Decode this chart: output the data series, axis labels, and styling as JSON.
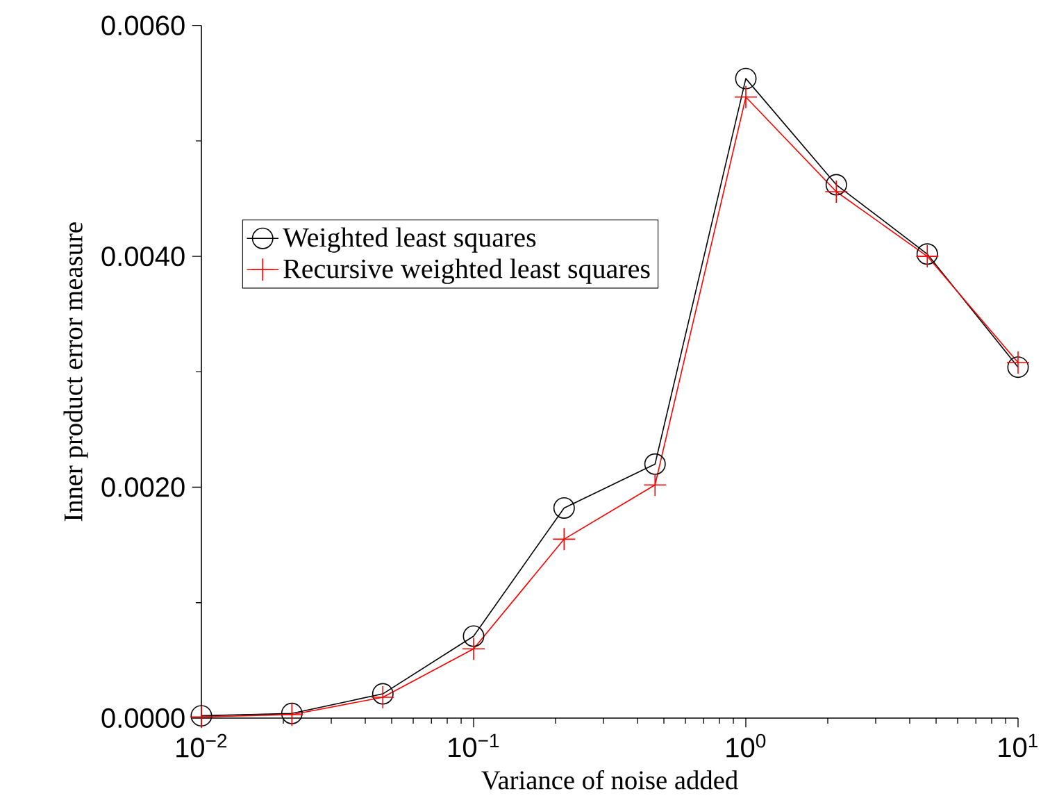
{
  "chart_data": {
    "type": "line",
    "xlabel": "Variance of noise added",
    "ylabel": "Inner product error measure",
    "x": [
      0.01,
      0.0215,
      0.0464,
      0.1,
      0.215,
      0.464,
      1,
      2.15,
      4.64,
      10
    ],
    "series": [
      {
        "name": "Weighted least squares",
        "color": "#000000",
        "marker": "circle",
        "values": [
          2e-05,
          4e-05,
          0.00021,
          0.00071,
          0.00182,
          0.0022,
          0.00554,
          0.00462,
          0.00402,
          0.00304
        ]
      },
      {
        "name": "Recursive weighted least squares",
        "color": "#ff0000",
        "marker": "cross",
        "values": [
          1e-05,
          3e-05,
          0.00018,
          0.0006,
          0.00155,
          0.00202,
          0.00538,
          0.00456,
          0.004,
          0.00308
        ]
      }
    ],
    "log": "x",
    "xlim": [
      0.01,
      10
    ],
    "ylim": [
      0,
      0.006
    ],
    "xticks": [
      {
        "value": 0.01,
        "label": "10$^{−2}$"
      },
      {
        "value": 0.1,
        "label": "10$^{−1}$"
      },
      {
        "value": 1,
        "label": "10$^{0}$"
      },
      {
        "value": 10,
        "label": "10$^{1}$"
      }
    ],
    "yticks": [
      {
        "value": 0,
        "label": "0.0000"
      },
      {
        "value": 0.001,
        "label": null
      },
      {
        "value": 0.002,
        "label": "0.0020"
      },
      {
        "value": 0.003,
        "label": null
      },
      {
        "value": 0.004,
        "label": "0.0040"
      },
      {
        "value": 0.005,
        "label": null
      },
      {
        "value": 0.006,
        "label": "0.0060"
      }
    ],
    "grid": false,
    "legend": "left",
    "line_style": "solid"
  }
}
